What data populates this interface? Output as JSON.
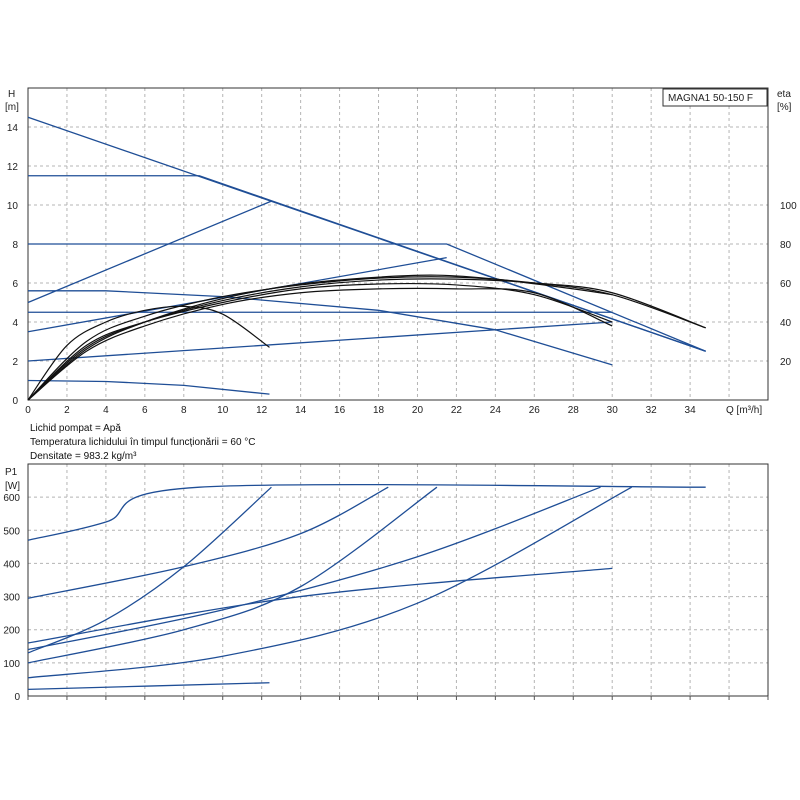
{
  "model_label": "MAGNA1 50-150 F",
  "info_lines": [
    "Lichid pompat = Apă",
    "Temperatura lichidului în timpul funcționării = 60 °C",
    "Densitate = 983.2 kg/m³"
  ],
  "colors": {
    "curve_blue": "#1f4e96",
    "curve_black": "#111111",
    "grid": "#b4b4b4"
  },
  "chart_data": [
    {
      "type": "line",
      "xlabel": "Q [m³/h]",
      "ylabel_line1": "H",
      "ylabel_line2": "[m]",
      "y2label_line1": "eta",
      "y2label_line2": "[%]",
      "xlim": [
        0,
        38
      ],
      "ylim": [
        0,
        16
      ],
      "y2lim": [
        0,
        160
      ],
      "xticks": [
        0,
        2,
        4,
        6,
        8,
        10,
        12,
        14,
        16,
        18,
        20,
        22,
        24,
        26,
        28,
        30,
        32,
        34
      ],
      "yticks": [
        0,
        2,
        4,
        6,
        8,
        10,
        12,
        14
      ],
      "y2ticks": [
        20,
        40,
        60,
        80,
        100
      ],
      "grid": true,
      "head_curves": [
        {
          "points": [
            [
              0,
              14.5
            ],
            [
              34.8,
              2.5
            ]
          ]
        },
        {
          "points": [
            [
              0,
              11.5
            ],
            [
              8.8,
              11.5
            ],
            [
              34.8,
              2.5
            ]
          ]
        },
        {
          "points": [
            [
              0,
              8
            ],
            [
              21.5,
              8
            ],
            [
              34.8,
              2.5
            ]
          ]
        },
        {
          "points": [
            [
              0,
              5.6
            ],
            [
              4,
              5.6
            ],
            [
              10,
              5.3
            ],
            [
              18,
              4.6
            ],
            [
              24,
              3.6
            ],
            [
              30,
              1.8
            ]
          ]
        },
        {
          "points": [
            [
              0,
              4.5
            ],
            [
              30,
              4.5
            ]
          ]
        },
        {
          "points": [
            [
              0,
              1
            ],
            [
              4,
              0.95
            ],
            [
              8,
              0.75
            ],
            [
              12.4,
              0.3
            ]
          ]
        },
        {
          "points": [
            [
              0,
              5
            ],
            [
              12.5,
              10.2
            ]
          ]
        },
        {
          "points": [
            [
              0,
              3.5
            ],
            [
              21.5,
              7.3
            ]
          ]
        },
        {
          "points": [
            [
              0,
              2
            ],
            [
              30,
              4
            ]
          ]
        }
      ],
      "efficiency_curves": [
        {
          "points": [
            [
              0,
              0
            ],
            [
              2,
              28
            ],
            [
              4,
              40
            ],
            [
              6,
              46
            ],
            [
              8,
              48
            ],
            [
              10,
              44
            ],
            [
              12.4,
              27
            ]
          ]
        },
        {
          "points": [
            [
              0,
              0
            ],
            [
              3,
              28
            ],
            [
              6,
              40
            ],
            [
              10,
              50
            ],
            [
              14,
              57
            ],
            [
              18,
              59.5
            ],
            [
              22,
              59
            ],
            [
              26,
              54
            ],
            [
              30,
              40
            ]
          ]
        },
        {
          "points": [
            [
              0,
              0
            ],
            [
              3,
              25
            ],
            [
              6,
              38
            ],
            [
              10,
              49
            ],
            [
              14,
              55
            ],
            [
              18,
              57
            ],
            [
              22,
              57
            ],
            [
              26,
              55
            ],
            [
              30,
              38
            ]
          ]
        },
        {
          "points": [
            [
              0,
              0
            ],
            [
              3,
              27
            ],
            [
              6,
              40
            ],
            [
              10,
              51
            ],
            [
              14,
              58
            ],
            [
              18,
              61.5
            ],
            [
              22,
              62
            ],
            [
              26,
              60
            ],
            [
              30,
              55
            ],
            [
              34.8,
              37
            ]
          ]
        },
        {
          "points": [
            [
              0,
              0
            ],
            [
              3,
              30
            ],
            [
              6,
              43
            ],
            [
              10,
              53
            ],
            [
              14,
              59
            ],
            [
              18,
              62.5
            ],
            [
              22,
              63
            ],
            [
              26,
              60
            ],
            [
              30,
              54
            ],
            [
              34.8,
              37
            ]
          ]
        },
        {
          "points": [
            [
              0,
              0
            ],
            [
              3,
              26
            ],
            [
              6,
              40
            ],
            [
              10,
              52
            ],
            [
              14,
              59.5
            ],
            [
              18,
              63
            ],
            [
              21,
              64
            ],
            [
              24,
              62
            ],
            [
              28,
              57
            ],
            [
              30,
              54
            ]
          ]
        }
      ]
    },
    {
      "type": "line",
      "xlabel": "",
      "ylabel_line1": "P1",
      "ylabel_line2": "[W]",
      "xlim": [
        0,
        38
      ],
      "ylim": [
        0,
        700
      ],
      "yticks": [
        0,
        100,
        200,
        300,
        400,
        500,
        600
      ],
      "grid": true,
      "power_curves": [
        {
          "points": [
            [
              0,
              470
            ],
            [
              4,
              525
            ],
            [
              8.8,
              630
            ],
            [
              34.8,
              630
            ]
          ]
        },
        {
          "points": [
            [
              0,
              295
            ],
            [
              8,
              390
            ],
            [
              14,
              490
            ],
            [
              18.5,
              630
            ]
          ]
        },
        {
          "points": [
            [
              0,
              130
            ],
            [
              4,
              230
            ],
            [
              8,
              390
            ],
            [
              12.5,
              630
            ]
          ]
        },
        {
          "points": [
            [
              0,
              100
            ],
            [
              8,
              200
            ],
            [
              14,
              330
            ],
            [
              21,
              630
            ]
          ]
        },
        {
          "points": [
            [
              0,
              140
            ],
            [
              10,
              260
            ],
            [
              20,
              420
            ],
            [
              29.4,
              630
            ]
          ]
        },
        {
          "points": [
            [
              0,
              55
            ],
            [
              10,
              120
            ],
            [
              20,
              280
            ],
            [
              31,
              630
            ]
          ]
        },
        {
          "points": [
            [
              0,
              160
            ],
            [
              14,
              300
            ],
            [
              30,
              385
            ]
          ]
        },
        {
          "points": [
            [
              0,
              20
            ],
            [
              12.4,
              40
            ]
          ]
        }
      ]
    }
  ]
}
